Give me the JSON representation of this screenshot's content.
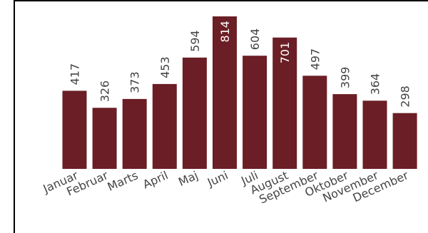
{
  "chart_data": {
    "type": "bar",
    "categories": [
      "Januar",
      "Februar",
      "Marts",
      "April",
      "Maj",
      "Juni",
      "Juli",
      "August",
      "September",
      "Oktober",
      "November",
      "December"
    ],
    "values": [
      417,
      326,
      373,
      453,
      594,
      814,
      604,
      701,
      497,
      399,
      364,
      298
    ],
    "ylim": [
      0,
      814
    ],
    "grid": false,
    "legend": "none",
    "colors": {
      "bar": "#6b1e25",
      "label": "#444444",
      "label_inside": "#ffffff",
      "frame": "#000000"
    }
  }
}
